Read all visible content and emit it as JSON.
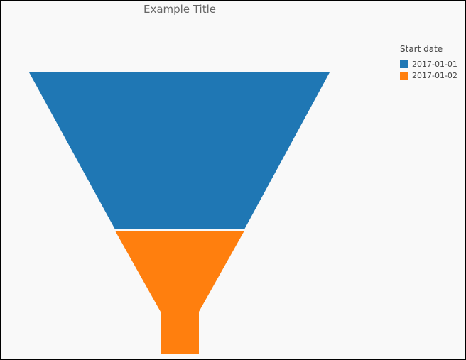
{
  "chart_data": {
    "type": "funnel",
    "title": "Example Title",
    "legend_title": "Start date",
    "legend_position": "top-right",
    "series": [
      {
        "name": "2017-01-01",
        "color": "#1f77b4"
      },
      {
        "name": "2017-01-02",
        "color": "#ff7f0e"
      }
    ]
  }
}
